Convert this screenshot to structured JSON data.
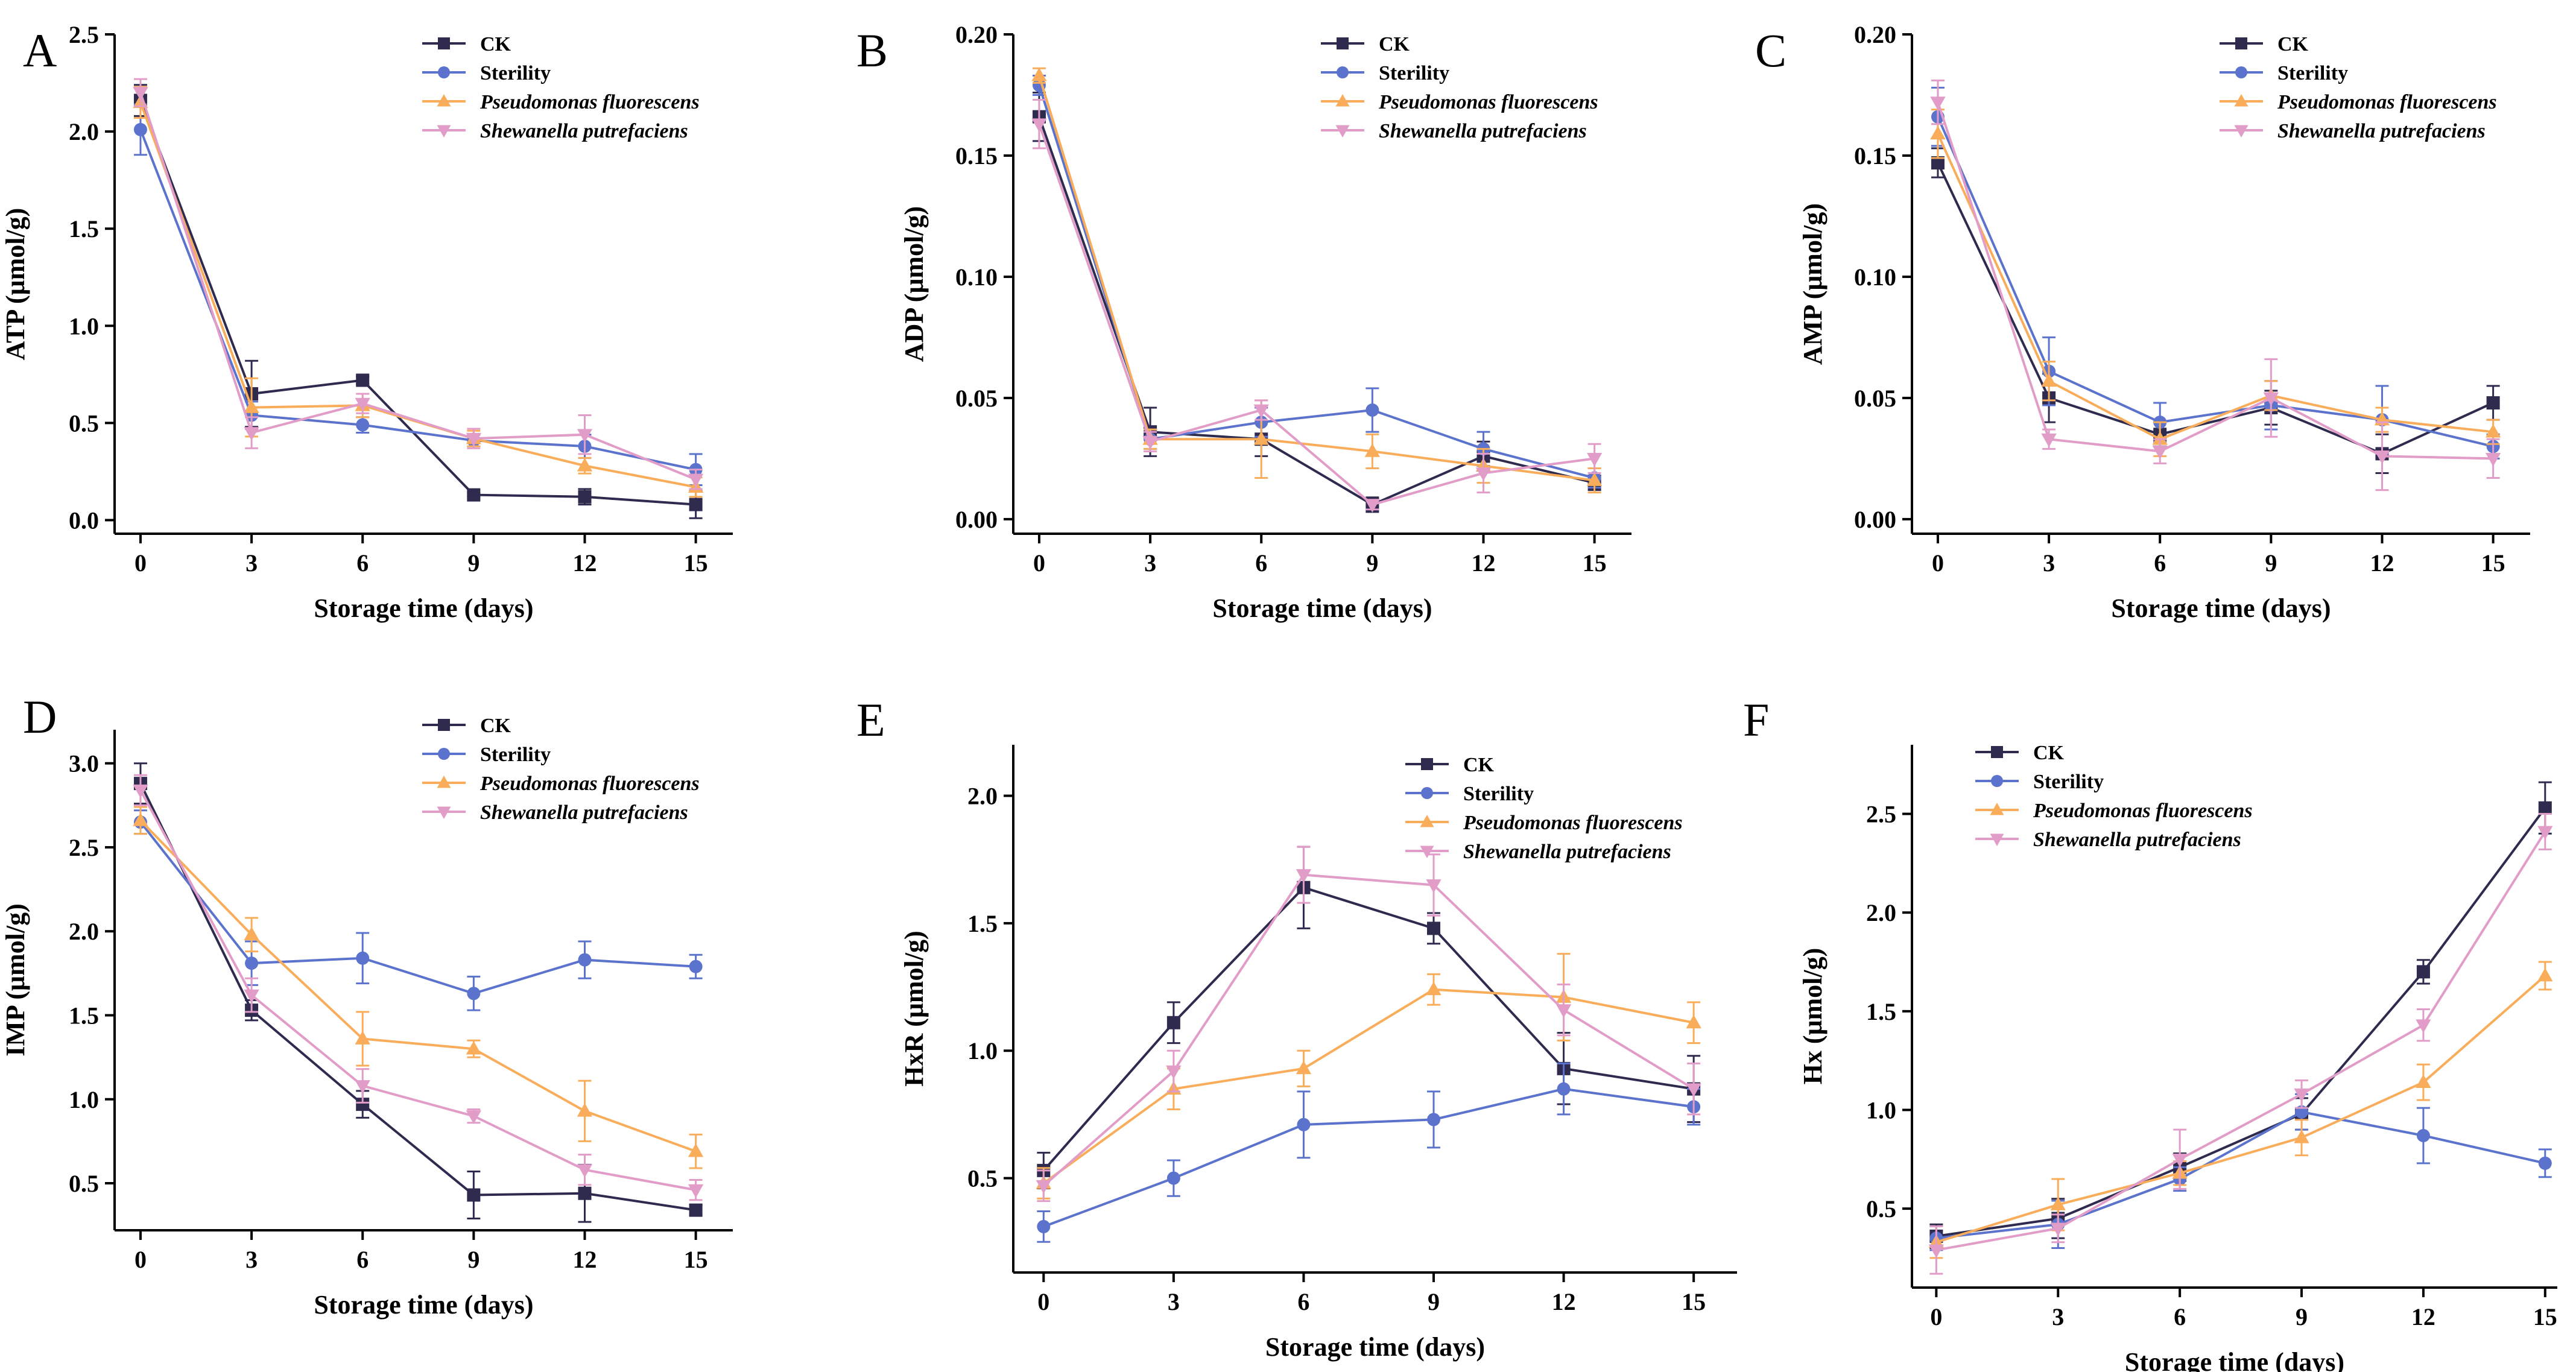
{
  "series_styles": [
    {
      "name": "CK",
      "color": "#2e2b4f",
      "marker": "square",
      "italic": false
    },
    {
      "name": "Sterility",
      "color": "#5b73cc",
      "marker": "circle",
      "italic": false
    },
    {
      "name": "Pseudomonas fluorescens",
      "color": "#f9ad5a",
      "marker": "triangle-up",
      "italic": true
    },
    {
      "name": "Shewanella putrefaciens",
      "color": "#e29cc8",
      "marker": "triangle-down",
      "italic": true
    }
  ],
  "chart_data": [
    {
      "panel": "A",
      "type": "line",
      "xlabel": "Storage time (days)",
      "ylabel": "ATP (μmol/g)",
      "x": [
        0,
        3,
        6,
        9,
        12,
        15
      ],
      "xlim": [
        -0.7,
        16
      ],
      "ylim": [
        -0.07,
        2.5
      ],
      "yticks": [
        0.0,
        0.5,
        1.0,
        1.5,
        2.0,
        2.5
      ],
      "ytick_labels": [
        "0.0",
        "0.5",
        "1.0",
        "1.5",
        "2.0",
        "2.5"
      ],
      "series": [
        {
          "name": "CK",
          "values": [
            2.16,
            0.65,
            0.72,
            0.13,
            0.12,
            0.08
          ],
          "errors": [
            0.08,
            0.17,
            0.02,
            0.01,
            0.04,
            0.07
          ]
        },
        {
          "name": "Sterility",
          "values": [
            2.01,
            0.54,
            0.49,
            0.41,
            0.38,
            0.26
          ],
          "errors": [
            0.13,
            0.07,
            0.04,
            0.03,
            0.06,
            0.08
          ]
        },
        {
          "name": "Pseudomonas fluorescens",
          "values": [
            2.15,
            0.58,
            0.59,
            0.42,
            0.28,
            0.17
          ],
          "errors": [
            0.08,
            0.15,
            0.06,
            0.04,
            0.04,
            0.05
          ]
        },
        {
          "name": "Shewanella putrefaciens",
          "values": [
            2.2,
            0.45,
            0.6,
            0.42,
            0.44,
            0.21
          ],
          "errors": [
            0.07,
            0.08,
            0.05,
            0.05,
            0.1,
            0.05
          ]
        }
      ]
    },
    {
      "panel": "B",
      "type": "line",
      "xlabel": "Storage time (days)",
      "ylabel": "ADP (μmol/g)",
      "x": [
        0,
        3,
        6,
        9,
        12,
        15
      ],
      "xlim": [
        -0.7,
        16
      ],
      "ylim": [
        -0.006,
        0.2
      ],
      "yticks": [
        0.0,
        0.05,
        0.1,
        0.15,
        0.2
      ],
      "ytick_labels": [
        "0.00",
        "0.05",
        "0.10",
        "0.15",
        "0.20"
      ],
      "series": [
        {
          "name": "CK",
          "values": [
            0.166,
            0.036,
            0.033,
            0.006,
            0.026,
            0.015
          ],
          "errors": [
            0.01,
            0.01,
            0.007,
            0.003,
            0.006,
            0.003
          ]
        },
        {
          "name": "Sterility",
          "values": [
            0.179,
            0.033,
            0.04,
            0.045,
            0.029,
            0.017
          ],
          "errors": [
            0.004,
            0.004,
            0.006,
            0.009,
            0.007,
            0.004
          ]
        },
        {
          "name": "Pseudomonas fluorescens",
          "values": [
            0.183,
            0.033,
            0.033,
            0.028,
            0.022,
            0.016
          ],
          "errors": [
            0.003,
            0.004,
            0.016,
            0.007,
            0.007,
            0.005
          ]
        },
        {
          "name": "Shewanella putrefaciens",
          "values": [
            0.163,
            0.032,
            0.045,
            0.006,
            0.019,
            0.025
          ],
          "errors": [
            0.01,
            0.004,
            0.004,
            0.002,
            0.008,
            0.006
          ]
        }
      ]
    },
    {
      "panel": "C",
      "type": "line",
      "xlabel": "Storage time (days)",
      "ylabel": "AMP (μmol/g)",
      "x": [
        0,
        3,
        6,
        9,
        12,
        15
      ],
      "xlim": [
        -0.7,
        16
      ],
      "ylim": [
        -0.006,
        0.2
      ],
      "yticks": [
        0.0,
        0.05,
        0.1,
        0.15,
        0.2
      ],
      "ytick_labels": [
        "0.00",
        "0.05",
        "0.10",
        "0.15",
        "0.20"
      ],
      "series": [
        {
          "name": "CK",
          "values": [
            0.147,
            0.05,
            0.035,
            0.046,
            0.027,
            0.048
          ],
          "errors": [
            0.006,
            0.01,
            0.005,
            0.007,
            0.008,
            0.007
          ]
        },
        {
          "name": "Sterility",
          "values": [
            0.166,
            0.061,
            0.04,
            0.047,
            0.041,
            0.03
          ],
          "errors": [
            0.012,
            0.014,
            0.008,
            0.01,
            0.014,
            0.005
          ]
        },
        {
          "name": "Pseudomonas fluorescens",
          "values": [
            0.159,
            0.057,
            0.033,
            0.051,
            0.041,
            0.036
          ],
          "errors": [
            0.01,
            0.008,
            0.007,
            0.006,
            0.005,
            0.005
          ]
        },
        {
          "name": "Shewanella putrefaciens",
          "values": [
            0.172,
            0.033,
            0.028,
            0.05,
            0.026,
            0.025
          ],
          "errors": [
            0.009,
            0.004,
            0.005,
            0.016,
            0.014,
            0.008
          ]
        }
      ]
    },
    {
      "panel": "D",
      "type": "line",
      "xlabel": "Storage time (days)",
      "ylabel": "IMP (μmol/g)",
      "x": [
        0,
        3,
        6,
        9,
        12,
        15
      ],
      "xlim": [
        -0.7,
        16
      ],
      "ylim": [
        0.22,
        3.2
      ],
      "yticks": [
        0.5,
        1.0,
        1.5,
        2.0,
        2.5,
        3.0
      ],
      "ytick_labels": [
        "0.5",
        "1.0",
        "1.5",
        "2.0",
        "2.5",
        "3.0"
      ],
      "series": [
        {
          "name": "CK",
          "values": [
            2.88,
            1.53,
            0.97,
            0.43,
            0.44,
            0.34
          ],
          "errors": [
            0.12,
            0.06,
            0.08,
            0.14,
            0.17,
            0.03
          ]
        },
        {
          "name": "Sterility",
          "values": [
            2.65,
            1.81,
            1.84,
            1.63,
            1.83,
            1.79
          ],
          "errors": [
            0.07,
            0.13,
            0.15,
            0.1,
            0.11,
            0.07
          ]
        },
        {
          "name": "Pseudomonas fluorescens",
          "values": [
            2.66,
            1.98,
            1.36,
            1.3,
            0.93,
            0.69
          ],
          "errors": [
            0.08,
            0.1,
            0.16,
            0.05,
            0.18,
            0.1
          ]
        },
        {
          "name": "Shewanella putrefaciens",
          "values": [
            2.84,
            1.62,
            1.08,
            0.9,
            0.58,
            0.46
          ],
          "errors": [
            0.09,
            0.1,
            0.1,
            0.04,
            0.09,
            0.06
          ]
        }
      ]
    },
    {
      "panel": "E",
      "type": "line",
      "xlabel": "Storage time (days)",
      "ylabel": "HxR (μmol/g)",
      "x": [
        0,
        3,
        6,
        9,
        12,
        15
      ],
      "xlim": [
        -0.7,
        16
      ],
      "ylim": [
        0.13,
        2.2
      ],
      "yticks": [
        0.5,
        1.0,
        1.5,
        2.0
      ],
      "ytick_labels": [
        "0.5",
        "1.0",
        "1.5",
        "2.0"
      ],
      "series": [
        {
          "name": "CK",
          "values": [
            0.53,
            1.11,
            1.64,
            1.48,
            0.93,
            0.85
          ],
          "errors": [
            0.07,
            0.08,
            0.16,
            0.06,
            0.14,
            0.13
          ]
        },
        {
          "name": "Sterility",
          "values": [
            0.31,
            0.5,
            0.71,
            0.73,
            0.85,
            0.78
          ],
          "errors": [
            0.06,
            0.07,
            0.13,
            0.11,
            0.1,
            0.07
          ]
        },
        {
          "name": "Pseudomonas fluorescens",
          "values": [
            0.48,
            0.85,
            0.93,
            1.24,
            1.21,
            1.11
          ],
          "errors": [
            0.06,
            0.08,
            0.07,
            0.06,
            0.17,
            0.08
          ]
        },
        {
          "name": "Shewanella putrefaciens",
          "values": [
            0.47,
            0.92,
            1.69,
            1.65,
            1.16,
            0.85
          ],
          "errors": [
            0.06,
            0.08,
            0.11,
            0.12,
            0.1,
            0.1
          ]
        }
      ]
    },
    {
      "panel": "F",
      "type": "line",
      "xlabel": "Storage time (days)",
      "ylabel": "Hx (μmol/g)",
      "x": [
        0,
        3,
        6,
        9,
        12,
        15
      ],
      "xlim": [
        -0.6,
        15.3
      ],
      "ylim": [
        0.1,
        2.85
      ],
      "yticks": [
        0.5,
        1.0,
        1.5,
        2.0,
        2.5
      ],
      "ytick_labels": [
        "0.5",
        "1.0",
        "1.5",
        "2.0",
        "2.5"
      ],
      "series": [
        {
          "name": "CK",
          "values": [
            0.36,
            0.45,
            0.71,
            0.98,
            1.7,
            2.53
          ],
          "errors": [
            0.06,
            0.1,
            0.07,
            0.08,
            0.06,
            0.13
          ]
        },
        {
          "name": "Sterility",
          "values": [
            0.35,
            0.42,
            0.65,
            0.99,
            0.87,
            0.73
          ],
          "errors": [
            0.06,
            0.12,
            0.06,
            0.09,
            0.14,
            0.07
          ]
        },
        {
          "name": "Pseudomonas fluorescens",
          "values": [
            0.33,
            0.52,
            0.68,
            0.86,
            1.14,
            1.68
          ],
          "errors": [
            0.08,
            0.13,
            0.06,
            0.09,
            0.09,
            0.07
          ]
        },
        {
          "name": "Shewanella putrefaciens",
          "values": [
            0.29,
            0.4,
            0.75,
            1.08,
            1.43,
            2.41
          ],
          "errors": [
            0.12,
            0.07,
            0.15,
            0.07,
            0.08,
            0.09
          ]
        }
      ]
    }
  ]
}
